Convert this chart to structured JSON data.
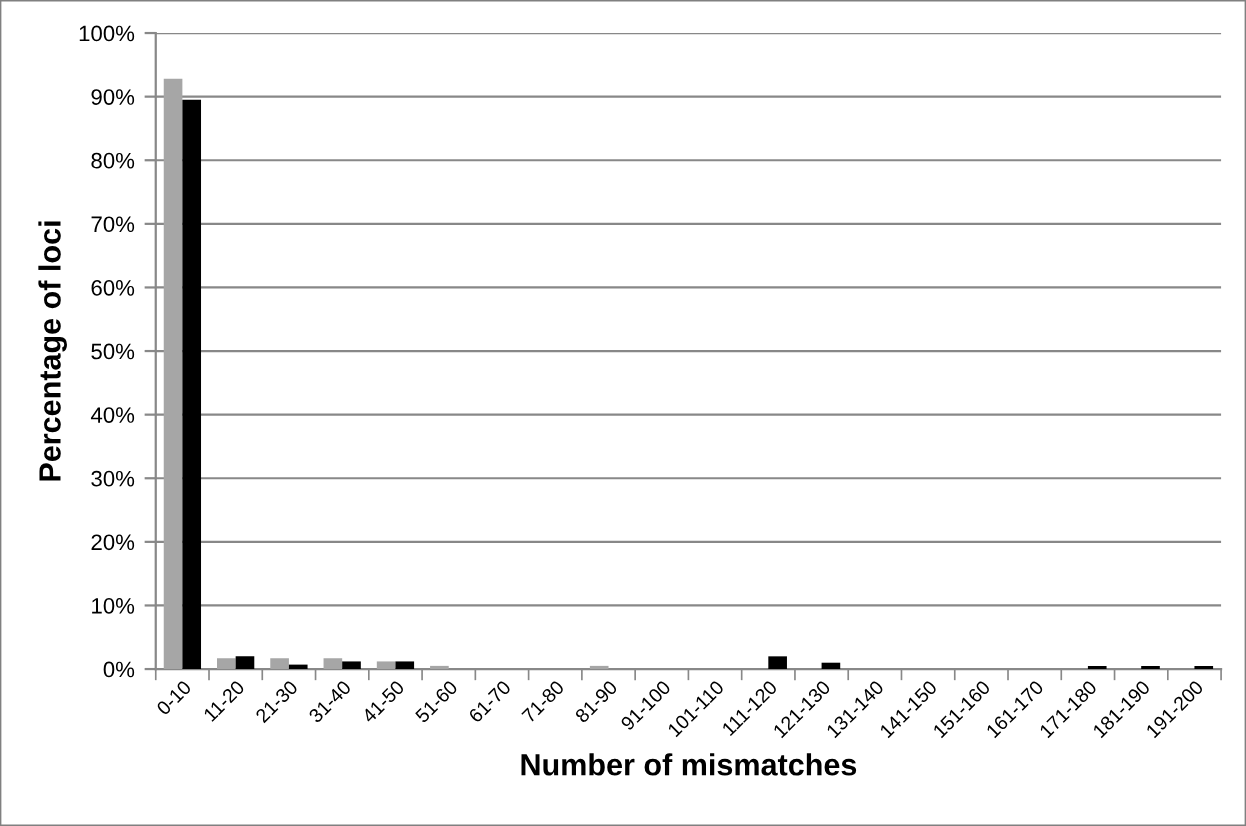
{
  "chart_data": {
    "type": "bar",
    "xlabel": "Number of mismatches",
    "ylabel": "Percentage of loci",
    "categories": [
      "0-10",
      "11-20",
      "21-30",
      "31-40",
      "41-50",
      "51-60",
      "61-70",
      "71-80",
      "81-90",
      "91-100",
      "101-110",
      "111-120",
      "121-130",
      "131-140",
      "141-150",
      "151-160",
      "161-170",
      "171-180",
      "181-190",
      "191-200"
    ],
    "series": [
      {
        "color": "#a6a6a6",
        "values": [
          92.8,
          1.7,
          1.7,
          1.7,
          1.2,
          0.5,
          0,
          0,
          0.5,
          0,
          0,
          0,
          0,
          0,
          0,
          0,
          0,
          0,
          0,
          0
        ]
      },
      {
        "color": "#000000",
        "values": [
          89.5,
          2.0,
          0.7,
          1.2,
          1.2,
          0,
          0,
          0,
          0,
          0,
          0,
          2.0,
          1.0,
          0,
          0,
          0,
          0,
          0.5,
          0.5,
          0.5
        ]
      }
    ],
    "ylim": [
      0,
      100
    ],
    "yticks": [
      {
        "value": 0,
        "label": "0%"
      },
      {
        "value": 10,
        "label": "10%"
      },
      {
        "value": 20,
        "label": "20%"
      },
      {
        "value": 30,
        "label": "30%"
      },
      {
        "value": 40,
        "label": "40%"
      },
      {
        "value": 50,
        "label": "50%"
      },
      {
        "value": 60,
        "label": "60%"
      },
      {
        "value": 70,
        "label": "70%"
      },
      {
        "value": 80,
        "label": "80%"
      },
      {
        "value": 90,
        "label": "90%"
      },
      {
        "value": 100,
        "label": "100%"
      }
    ],
    "grid": "y"
  }
}
